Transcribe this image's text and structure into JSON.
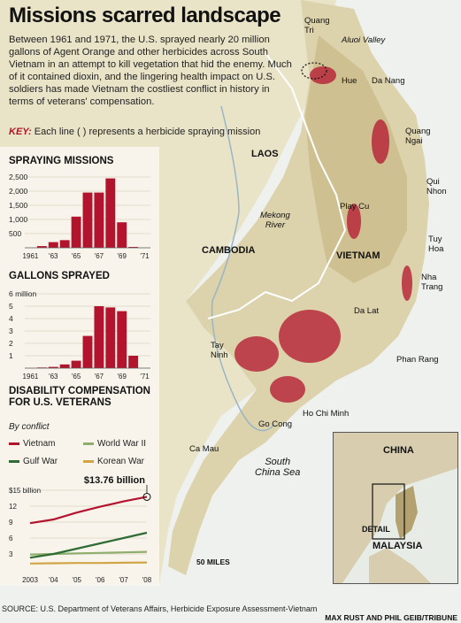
{
  "header": {
    "title": "Missions scarred landscape",
    "intro": "Between 1961 and 1971, the U.S. sprayed nearly 20 million gallons of Agent Orange and other herbicides across South Vietnam in an attempt to kill vegetation that hid the enemy. Much of it contained dioxin, and the lingering health impact on U.S. soldiers has made Vietnam the costliest conflict in history in terms of veterans' compensation.",
    "key_label": "KEY:",
    "key_text": "Each line ( ) represents a herbicide spraying mission",
    "key_dash": "—"
  },
  "map": {
    "labels": {
      "quang_tri": "Quang\nTri",
      "aluoi_valley": "Aluoi Valley",
      "hue": "Hue",
      "da_nang": "Da Nang",
      "quang_ngai": "Quang\nNgai",
      "laos": "LAOS",
      "play_cu": "Play Cu",
      "qui_nhon": "Qui\nNhon",
      "mekong_river": "Mekong\nRiver",
      "tuy_hoa": "Tuy\nHoa",
      "cambodia": "CAMBODIA",
      "vietnam": "VIETNAM",
      "nha_trang": "Nha\nTrang",
      "da_lat": "Da Lat",
      "phan_rang": "Phan Rang",
      "tay_ninh": "Tay\nNinh",
      "ho_chi_minh": "Ho Chi Minh",
      "go_cong": "Go Cong",
      "ca_mau": "Ca Mau",
      "south_china_sea": "South\nChina Sea",
      "scale": "50 MILES"
    },
    "inset": {
      "china": "CHINA",
      "detail": "DETAIL",
      "malaysia": "MALAYSIA"
    }
  },
  "colors": {
    "accent": "#b3142d",
    "vietnam": "#b3142d",
    "wwii": "#8fae6e",
    "gulf": "#2f6b34",
    "korean": "#d1a545"
  },
  "source": "SOURCE: U.S. Department of Veterans Affairs, Herbicide Exposure Assessment-Vietnam",
  "credit": "MAX RUST AND  PHIL GEIB/TRIBUNE",
  "chart_data": [
    {
      "type": "bar",
      "title": "SPRAYING MISSIONS",
      "x": [
        1961,
        1962,
        1963,
        1964,
        1965,
        1966,
        1967,
        1968,
        1969,
        1970,
        1971
      ],
      "tick_labels": [
        "1961",
        "'63",
        "'65",
        "'67",
        "'69",
        "'71"
      ],
      "values": [
        0,
        60,
        200,
        270,
        1100,
        1950,
        1950,
        2450,
        900,
        30,
        0
      ],
      "y_ticks": [
        "2,500",
        "2,000",
        "1,500",
        "1,000",
        "500"
      ],
      "ylim": [
        0,
        2500
      ]
    },
    {
      "type": "bar",
      "title": "GALLONS SPRAYED",
      "x": [
        1961,
        1962,
        1963,
        1964,
        1965,
        1966,
        1967,
        1968,
        1969,
        1970,
        1971
      ],
      "tick_labels": [
        "1961",
        "'63",
        "'65",
        "'67",
        "'69",
        "'71"
      ],
      "values": [
        0,
        0.05,
        0.1,
        0.3,
        0.6,
        2.6,
        5.0,
        4.9,
        4.6,
        1.0,
        0
      ],
      "y_ticks": [
        "6 million",
        "5",
        "4",
        "3",
        "2",
        "1"
      ],
      "ylim": [
        0,
        6
      ]
    },
    {
      "type": "line",
      "title": "DISABILITY COMPENSATION FOR U.S. VETERANS",
      "subtitle": "By conflict",
      "x": [
        2003,
        2004,
        2005,
        2006,
        2007,
        2008
      ],
      "tick_labels": [
        "2003",
        "'04",
        "'05",
        "'06",
        "'07",
        "'08"
      ],
      "y_ticks": [
        "$15 billion",
        "12",
        "9",
        "6",
        "3"
      ],
      "ylim": [
        0,
        15
      ],
      "annotation": "$13.76 billion",
      "series": [
        {
          "name": "Vietnam",
          "values": [
            8.8,
            9.5,
            10.8,
            11.9,
            12.9,
            13.76
          ]
        },
        {
          "name": "World War II",
          "values": [
            2.9,
            3.0,
            3.1,
            3.2,
            3.3,
            3.4
          ]
        },
        {
          "name": "Gulf War",
          "values": [
            2.3,
            3.0,
            4.0,
            5.0,
            6.0,
            7.0
          ]
        },
        {
          "name": "Korean War",
          "values": [
            1.2,
            1.25,
            1.3,
            1.3,
            1.35,
            1.4
          ]
        }
      ]
    }
  ]
}
